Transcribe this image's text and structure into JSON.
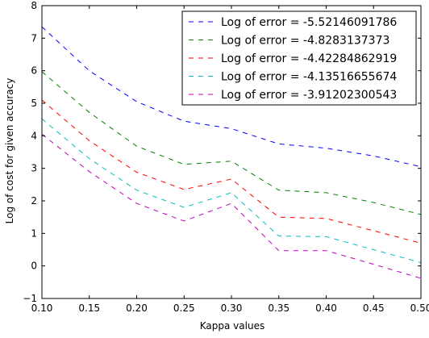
{
  "chart_data": {
    "type": "line",
    "title": "",
    "xlabel": "Kappa values",
    "ylabel": "Log of cost for given accuracy",
    "xlim": [
      0.1,
      0.5
    ],
    "ylim": [
      -1,
      8
    ],
    "x_ticks": [
      "0.10",
      "0.15",
      "0.20",
      "0.25",
      "0.30",
      "0.35",
      "0.40",
      "0.45",
      "0.50"
    ],
    "y_ticks": [
      "−1",
      "0",
      "1",
      "2",
      "3",
      "4",
      "5",
      "6",
      "7",
      "8"
    ],
    "grid": false,
    "legend": "top-right",
    "line_style": "dashed",
    "x": [
      0.1,
      0.15,
      0.2,
      0.25,
      0.3,
      0.35,
      0.4,
      0.45,
      0.5
    ],
    "series": [
      {
        "name": "Log of error = -5.52146091786",
        "color": "#0000ff",
        "values": [
          7.35,
          6.0,
          5.05,
          4.45,
          4.22,
          3.75,
          3.62,
          3.38,
          3.05
        ]
      },
      {
        "name": "Log of error = -4.8283137373",
        "color": "#008000",
        "values": [
          5.97,
          4.72,
          3.68,
          3.12,
          3.22,
          2.33,
          2.25,
          1.95,
          1.58
        ]
      },
      {
        "name": "Log of error = -4.42284862919",
        "color": "#ff0000",
        "values": [
          5.1,
          3.85,
          2.88,
          2.35,
          2.67,
          1.5,
          1.46,
          1.08,
          0.7
        ]
      },
      {
        "name": "Log of error = -4.13516655674",
        "color": "#00bfbf",
        "values": [
          4.52,
          3.3,
          2.33,
          1.8,
          2.25,
          0.92,
          0.9,
          0.5,
          0.1
        ]
      },
      {
        "name": "Log of error = -3.91202300543",
        "color": "#bf00bf",
        "values": [
          4.05,
          2.9,
          1.92,
          1.38,
          1.92,
          0.47,
          0.47,
          0.05,
          -0.38
        ]
      }
    ]
  }
}
